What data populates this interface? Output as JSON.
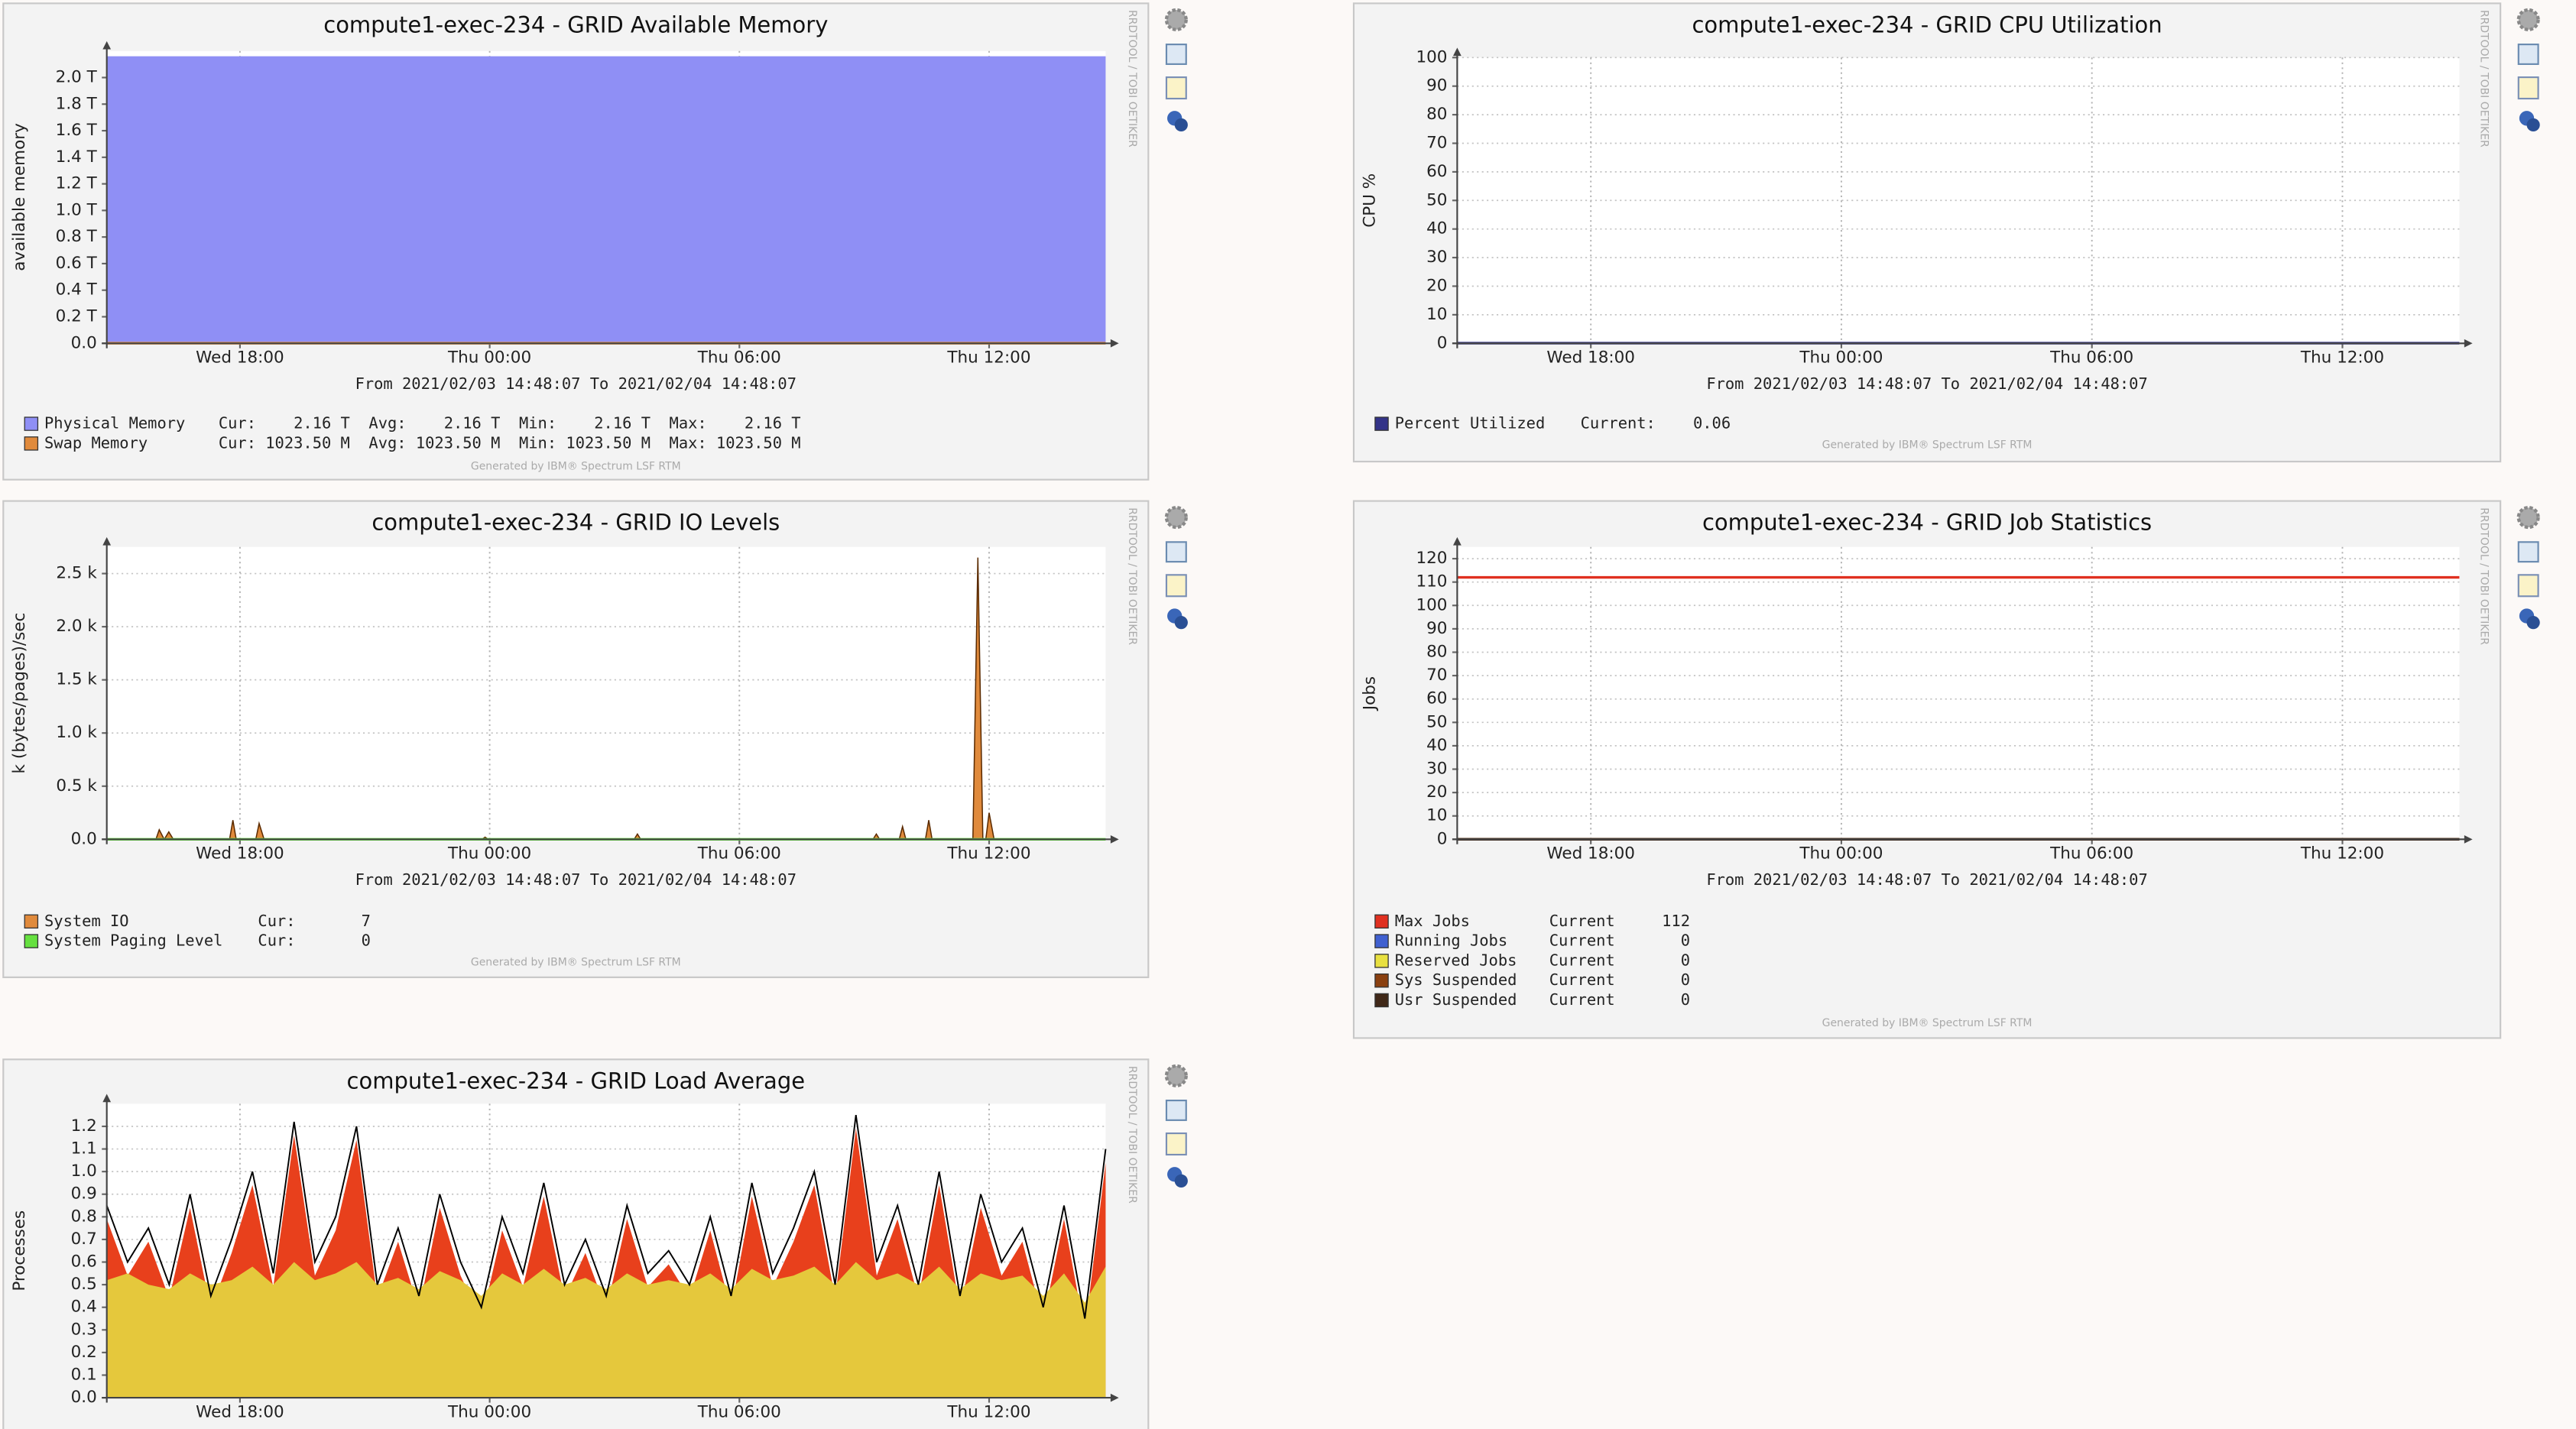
{
  "chart_data": [
    {
      "type": "area",
      "title": "compute1-exec-234 - GRID Available Memory",
      "ylabel": "available memory",
      "time_range": "From 2021/02/03 14:48:07 To 2021/02/04 14:48:07",
      "credit": "Generated by IBM® Spectrum LSF RTM",
      "watermark": "RRDTOOL / TOBI OETIKER",
      "x": [
        14.8,
        38.8
      ],
      "xlim": [
        14.8,
        38.8
      ],
      "xticks": [
        {
          "value": 18,
          "label": "Wed 18:00"
        },
        {
          "value": 24,
          "label": "Thu 00:00"
        },
        {
          "value": 30,
          "label": "Thu 06:00"
        },
        {
          "value": 36,
          "label": "Thu 12:00"
        }
      ],
      "ylim": [
        0,
        2.2
      ],
      "yticks": [
        {
          "value": 0,
          "label": "0.0"
        },
        {
          "value": 0.2,
          "label": "0.2 T"
        },
        {
          "value": 0.4,
          "label": "0.4 T"
        },
        {
          "value": 0.6,
          "label": "0.6 T"
        },
        {
          "value": 0.8,
          "label": "0.8 T"
        },
        {
          "value": 1.0,
          "label": "1.0 T"
        },
        {
          "value": 1.2,
          "label": "1.2 T"
        },
        {
          "value": 1.4,
          "label": "1.4 T"
        },
        {
          "value": 1.6,
          "label": "1.6 T"
        },
        {
          "value": 1.8,
          "label": "1.8 T"
        },
        {
          "value": 2.0,
          "label": "2.0 T"
        }
      ],
      "grid": true,
      "series": [
        {
          "name": "Physical Memory",
          "style": "area",
          "color": "#8f8ff5",
          "values": [
            2.16,
            2.16
          ],
          "legend_text": "Cur:    2.16 T  Avg:    2.16 T  Min:    2.16 T  Max:    2.16 T"
        },
        {
          "name": "Swap Memory",
          "style": "line",
          "color": "#e08a3c",
          "values": [
            0.001,
            0.001
          ],
          "legend_text": "Cur: 1023.50 M  Avg: 1023.50 M  Min: 1023.50 M  Max: 1023.50 M"
        }
      ]
    },
    {
      "type": "line",
      "title": "compute1-exec-234 - GRID CPU Utilization",
      "ylabel": "CPU %",
      "time_range": "From 2021/02/03 14:48:07 To 2021/02/04 14:48:07",
      "credit": "Generated by IBM® Spectrum LSF RTM",
      "watermark": "RRDTOOL / TOBI OETIKER",
      "x": [
        14.8,
        38.8
      ],
      "xlim": [
        14.8,
        38.8
      ],
      "xticks": [
        {
          "value": 18,
          "label": "Wed 18:00"
        },
        {
          "value": 24,
          "label": "Thu 00:00"
        },
        {
          "value": 30,
          "label": "Thu 06:00"
        },
        {
          "value": 36,
          "label": "Thu 12:00"
        }
      ],
      "ylim": [
        0,
        100
      ],
      "yticks": [
        0,
        10,
        20,
        30,
        40,
        50,
        60,
        70,
        80,
        90,
        100
      ],
      "grid": true,
      "series": [
        {
          "name": "Percent Utilized",
          "style": "line",
          "color": "#333388",
          "values": [
            0.06,
            0.06
          ],
          "legend_text": "Current:    0.06"
        }
      ]
    },
    {
      "type": "area",
      "title": "compute1-exec-234 - GRID IO Levels",
      "ylabel": "k (bytes/pages)/sec",
      "time_range": "From 2021/02/03 14:48:07 To 2021/02/04 14:48:07",
      "credit": "Generated by IBM® Spectrum LSF RTM",
      "watermark": "RRDTOOL / TOBI OETIKER",
      "x": [
        14.8,
        38.8
      ],
      "xlim": [
        14.8,
        38.8
      ],
      "xticks": [
        {
          "value": 18,
          "label": "Wed 18:00"
        },
        {
          "value": 24,
          "label": "Thu 00:00"
        },
        {
          "value": 30,
          "label": "Thu 06:00"
        },
        {
          "value": 36,
          "label": "Thu 12:00"
        }
      ],
      "ylim": [
        0,
        2750
      ],
      "yticks": [
        {
          "value": 0,
          "label": "0.0"
        },
        {
          "value": 500,
          "label": "0.5 k"
        },
        {
          "value": 1000,
          "label": "1.0 k"
        },
        {
          "value": 1500,
          "label": "1.5 k"
        },
        {
          "value": 2000,
          "label": "2.0 k"
        },
        {
          "value": 2500,
          "label": "2.5 k"
        }
      ],
      "grid": true,
      "series": [
        {
          "name": "System IO",
          "style": "area",
          "color": "#e08a3c",
          "x": [
            14.8,
            15.98,
            16.06,
            16.18,
            16.29,
            16.4,
            17.75,
            17.83,
            17.91,
            18.38,
            18.46,
            18.58,
            23.81,
            23.89,
            23.97,
            27.47,
            27.55,
            27.63,
            33.21,
            33.29,
            33.37,
            33.84,
            33.92,
            34.0,
            34.47,
            34.55,
            34.63,
            35.61,
            35.73,
            35.85,
            35.92,
            36.0,
            36.12,
            38.8
          ],
          "values": [
            0,
            0,
            90,
            0,
            70,
            0,
            0,
            180,
            0,
            0,
            150,
            0,
            0,
            20,
            0,
            0,
            50,
            0,
            0,
            50,
            0,
            0,
            120,
            0,
            0,
            180,
            0,
            0,
            2650,
            0,
            0,
            250,
            0,
            0
          ],
          "legend_text": "Cur:       7"
        },
        {
          "name": "System Paging Level",
          "style": "line",
          "color": "#66e040",
          "values": [
            0,
            0
          ],
          "legend_text": "Cur:       0"
        }
      ]
    },
    {
      "type": "line",
      "title": "compute1-exec-234 - GRID Job Statistics",
      "ylabel": "Jobs",
      "time_range": "From 2021/02/03 14:48:07 To 2021/02/04 14:48:07",
      "credit": "Generated by IBM® Spectrum LSF RTM",
      "watermark": "RRDTOOL / TOBI OETIKER",
      "x": [
        14.8,
        38.8
      ],
      "xlim": [
        14.8,
        38.8
      ],
      "xticks": [
        {
          "value": 18,
          "label": "Wed 18:00"
        },
        {
          "value": 24,
          "label": "Thu 00:00"
        },
        {
          "value": 30,
          "label": "Thu 06:00"
        },
        {
          "value": 36,
          "label": "Thu 12:00"
        }
      ],
      "ylim": [
        0,
        125
      ],
      "yticks": [
        0,
        10,
        20,
        30,
        40,
        50,
        60,
        70,
        80,
        90,
        100,
        110,
        120
      ],
      "grid": true,
      "series": [
        {
          "name": "Max Jobs",
          "style": "line",
          "color": "#e03020",
          "values": [
            112,
            112
          ],
          "legend_text": "Current     112"
        },
        {
          "name": "Running Jobs",
          "style": "line",
          "color": "#4060d0",
          "values": [
            0,
            0
          ],
          "legend_text": "Current       0"
        },
        {
          "name": "Reserved Jobs",
          "style": "line",
          "color": "#e8e040",
          "values": [
            0,
            0
          ],
          "legend_text": "Current       0"
        },
        {
          "name": "Sys Suspended",
          "style": "line",
          "color": "#8a4010",
          "values": [
            0,
            0
          ],
          "legend_text": "Current       0"
        },
        {
          "name": "Usr Suspended",
          "style": "line",
          "color": "#402818",
          "values": [
            0,
            0
          ],
          "legend_text": "Current       0"
        }
      ]
    },
    {
      "type": "area",
      "title": "compute1-exec-234 - GRID Load Average",
      "ylabel": "Processes",
      "watermark": "RRDTOOL / TOBI OETIKER",
      "x": [
        14.8,
        15.3,
        15.8,
        16.3,
        16.8,
        17.3,
        17.8,
        18.3,
        18.8,
        19.3,
        19.8,
        20.3,
        20.8,
        21.3,
        21.8,
        22.3,
        22.8,
        23.3,
        23.8,
        24.3,
        24.8,
        25.3,
        25.8,
        26.3,
        26.8,
        27.3,
        27.8,
        28.3,
        28.8,
        29.3,
        29.8,
        30.3,
        30.8,
        31.3,
        31.8,
        32.3,
        32.8,
        33.3,
        33.8,
        34.3,
        34.8,
        35.3,
        35.8,
        36.3,
        36.8,
        37.3,
        37.8,
        38.3,
        38.8
      ],
      "xlim": [
        14.8,
        38.8
      ],
      "xticks": [
        {
          "value": 18,
          "label": "Wed 18:00"
        },
        {
          "value": 24,
          "label": "Thu 00:00"
        },
        {
          "value": 30,
          "label": "Thu 06:00"
        },
        {
          "value": 36,
          "label": "Thu 12:00"
        }
      ],
      "ylim": [
        0,
        1.3
      ],
      "yticks": [
        {
          "value": 0,
          "label": "0.0"
        },
        0.1,
        0.2,
        0.3,
        0.4,
        0.5,
        0.6,
        0.7,
        0.8,
        0.9,
        {
          "value": 1.0,
          "label": "1.0"
        },
        1.1,
        1.2
      ],
      "grid": true,
      "series": [
        {
          "style": "area",
          "color": "#e8401c",
          "values": [
            0.79,
            0.54,
            0.69,
            0.44,
            0.84,
            0.39,
            0.64,
            0.94,
            0.49,
            1.16,
            0.54,
            0.74,
            1.14,
            0.44,
            0.69,
            0.39,
            0.84,
            0.54,
            0.34,
            0.74,
            0.49,
            0.89,
            0.44,
            0.64,
            0.39,
            0.79,
            0.49,
            0.59,
            0.44,
            0.74,
            0.39,
            0.89,
            0.49,
            0.69,
            0.94,
            0.44,
            1.19,
            0.54,
            0.79,
            0.44,
            0.94,
            0.39,
            0.84,
            0.54,
            0.69,
            0.34,
            0.79,
            0.29,
            1.04
          ]
        },
        {
          "style": "area",
          "color": "#e5c83c",
          "values": [
            0.52,
            0.55,
            0.5,
            0.48,
            0.55,
            0.5,
            0.52,
            0.58,
            0.5,
            0.6,
            0.52,
            0.55,
            0.6,
            0.5,
            0.53,
            0.48,
            0.56,
            0.52,
            0.45,
            0.55,
            0.5,
            0.57,
            0.5,
            0.53,
            0.48,
            0.55,
            0.5,
            0.52,
            0.5,
            0.55,
            0.48,
            0.57,
            0.52,
            0.54,
            0.58,
            0.5,
            0.6,
            0.52,
            0.55,
            0.5,
            0.58,
            0.48,
            0.55,
            0.52,
            0.54,
            0.45,
            0.55,
            0.42,
            0.58
          ]
        },
        {
          "style": "line",
          "color": "#000000",
          "values": [
            0.85,
            0.6,
            0.75,
            0.5,
            0.9,
            0.45,
            0.7,
            1.0,
            0.55,
            1.22,
            0.6,
            0.8,
            1.2,
            0.5,
            0.75,
            0.45,
            0.9,
            0.6,
            0.4,
            0.8,
            0.55,
            0.95,
            0.5,
            0.7,
            0.45,
            0.85,
            0.55,
            0.65,
            0.5,
            0.8,
            0.45,
            0.95,
            0.55,
            0.75,
            1.0,
            0.5,
            1.25,
            0.6,
            0.85,
            0.5,
            1.0,
            0.45,
            0.9,
            0.6,
            0.75,
            0.4,
            0.85,
            0.35,
            1.1
          ]
        }
      ]
    }
  ]
}
